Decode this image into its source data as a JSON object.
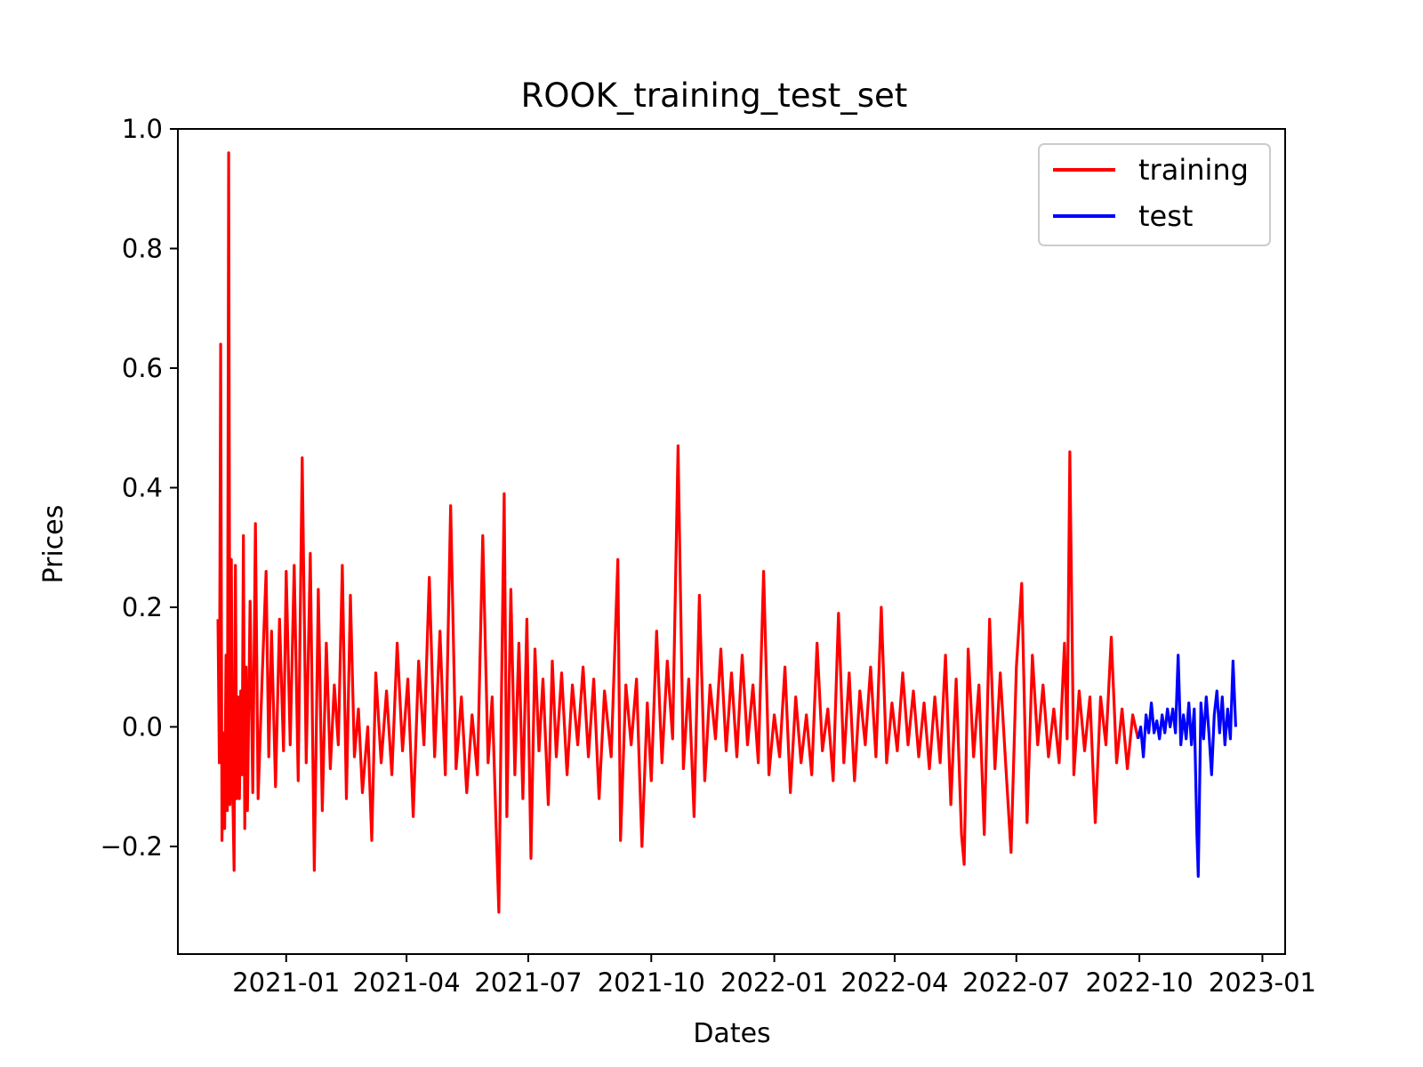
{
  "chart_data": {
    "type": "line",
    "title": "ROOK_training_test_set",
    "xlabel": "Dates",
    "ylabel": "Prices",
    "x_range": [
      "2020-10-12",
      "2023-01-18"
    ],
    "ylim": [
      -0.38,
      1.0
    ],
    "x_ticks": [
      "2021-01",
      "2021-04",
      "2021-07",
      "2021-10",
      "2022-01",
      "2022-04",
      "2022-07",
      "2022-10",
      "2023-01"
    ],
    "y_ticks": [
      "−0.2",
      "0.0",
      "0.2",
      "0.4",
      "0.6",
      "0.8",
      "1.0"
    ],
    "y_tick_values": [
      -0.2,
      0.0,
      0.2,
      0.4,
      0.6,
      0.8,
      1.0
    ],
    "grid": false,
    "legend": {
      "position": "top-right",
      "entries": [
        "training",
        "test"
      ]
    },
    "series": [
      {
        "name": "training",
        "color": "#ff0000",
        "points": [
          [
            "2020-11-11",
            0.18
          ],
          [
            "2020-11-12",
            -0.06
          ],
          [
            "2020-11-13",
            0.64
          ],
          [
            "2020-11-14",
            -0.19
          ],
          [
            "2020-11-15",
            -0.01
          ],
          [
            "2020-11-16",
            -0.17
          ],
          [
            "2020-11-17",
            0.12
          ],
          [
            "2020-11-18",
            -0.14
          ],
          [
            "2020-11-19",
            0.96
          ],
          [
            "2020-11-20",
            -0.13
          ],
          [
            "2020-11-21",
            0.28
          ],
          [
            "2020-11-22",
            -0.1
          ],
          [
            "2020-11-23",
            -0.24
          ],
          [
            "2020-11-24",
            0.27
          ],
          [
            "2020-11-25",
            -0.12
          ],
          [
            "2020-11-26",
            0.05
          ],
          [
            "2020-11-27",
            -0.12
          ],
          [
            "2020-11-28",
            0.06
          ],
          [
            "2020-11-29",
            -0.08
          ],
          [
            "2020-11-30",
            0.32
          ],
          [
            "2020-12-01",
            -0.17
          ],
          [
            "2020-12-02",
            0.1
          ],
          [
            "2020-12-03",
            -0.14
          ],
          [
            "2020-12-05",
            0.21
          ],
          [
            "2020-12-07",
            -0.11
          ],
          [
            "2020-12-09",
            0.34
          ],
          [
            "2020-12-11",
            -0.12
          ],
          [
            "2020-12-14",
            0.08
          ],
          [
            "2020-12-17",
            0.26
          ],
          [
            "2020-12-19",
            -0.05
          ],
          [
            "2020-12-21",
            0.16
          ],
          [
            "2020-12-24",
            -0.1
          ],
          [
            "2020-12-27",
            0.18
          ],
          [
            "2020-12-30",
            -0.04
          ],
          [
            "2021-01-01",
            0.26
          ],
          [
            "2021-01-04",
            -0.03
          ],
          [
            "2021-01-07",
            0.27
          ],
          [
            "2021-01-10",
            -0.09
          ],
          [
            "2021-01-13",
            0.45
          ],
          [
            "2021-01-16",
            -0.06
          ],
          [
            "2021-01-19",
            0.29
          ],
          [
            "2021-01-22",
            -0.24
          ],
          [
            "2021-01-25",
            0.23
          ],
          [
            "2021-01-28",
            -0.14
          ],
          [
            "2021-01-31",
            0.14
          ],
          [
            "2021-02-03",
            -0.07
          ],
          [
            "2021-02-06",
            0.07
          ],
          [
            "2021-02-09",
            -0.03
          ],
          [
            "2021-02-12",
            0.27
          ],
          [
            "2021-02-15",
            -0.12
          ],
          [
            "2021-02-18",
            0.22
          ],
          [
            "2021-02-21",
            -0.05
          ],
          [
            "2021-02-24",
            0.03
          ],
          [
            "2021-02-27",
            -0.11
          ],
          [
            "2021-03-03",
            0.0
          ],
          [
            "2021-03-06",
            -0.19
          ],
          [
            "2021-03-09",
            0.09
          ],
          [
            "2021-03-13",
            -0.06
          ],
          [
            "2021-03-17",
            0.06
          ],
          [
            "2021-03-21",
            -0.08
          ],
          [
            "2021-03-25",
            0.14
          ],
          [
            "2021-03-29",
            -0.04
          ],
          [
            "2021-04-02",
            0.08
          ],
          [
            "2021-04-06",
            -0.15
          ],
          [
            "2021-04-10",
            0.11
          ],
          [
            "2021-04-14",
            -0.03
          ],
          [
            "2021-04-18",
            0.25
          ],
          [
            "2021-04-22",
            -0.05
          ],
          [
            "2021-04-26",
            0.16
          ],
          [
            "2021-04-30",
            -0.08
          ],
          [
            "2021-05-04",
            0.37
          ],
          [
            "2021-05-08",
            -0.07
          ],
          [
            "2021-05-12",
            0.05
          ],
          [
            "2021-05-16",
            -0.11
          ],
          [
            "2021-05-20",
            0.02
          ],
          [
            "2021-05-24",
            -0.08
          ],
          [
            "2021-05-28",
            0.32
          ],
          [
            "2021-06-01",
            -0.06
          ],
          [
            "2021-06-04",
            0.05
          ],
          [
            "2021-06-07",
            -0.17
          ],
          [
            "2021-06-09",
            -0.31
          ],
          [
            "2021-06-11",
            0.06
          ],
          [
            "2021-06-13",
            0.39
          ],
          [
            "2021-06-15",
            -0.15
          ],
          [
            "2021-06-18",
            0.23
          ],
          [
            "2021-06-21",
            -0.08
          ],
          [
            "2021-06-24",
            0.14
          ],
          [
            "2021-06-27",
            -0.12
          ],
          [
            "2021-06-30",
            0.18
          ],
          [
            "2021-07-03",
            -0.22
          ],
          [
            "2021-07-06",
            0.13
          ],
          [
            "2021-07-09",
            -0.04
          ],
          [
            "2021-07-12",
            0.08
          ],
          [
            "2021-07-16",
            -0.13
          ],
          [
            "2021-07-19",
            0.11
          ],
          [
            "2021-07-22",
            -0.05
          ],
          [
            "2021-07-26",
            0.09
          ],
          [
            "2021-07-30",
            -0.08
          ],
          [
            "2021-08-03",
            0.07
          ],
          [
            "2021-08-07",
            -0.03
          ],
          [
            "2021-08-11",
            0.1
          ],
          [
            "2021-08-15",
            -0.05
          ],
          [
            "2021-08-19",
            0.08
          ],
          [
            "2021-08-23",
            -0.12
          ],
          [
            "2021-08-27",
            0.06
          ],
          [
            "2021-09-01",
            -0.05
          ],
          [
            "2021-09-06",
            0.28
          ],
          [
            "2021-09-08",
            -0.19
          ],
          [
            "2021-09-12",
            0.07
          ],
          [
            "2021-09-16",
            -0.03
          ],
          [
            "2021-09-20",
            0.08
          ],
          [
            "2021-09-24",
            -0.2
          ],
          [
            "2021-09-28",
            0.04
          ],
          [
            "2021-10-01",
            -0.09
          ],
          [
            "2021-10-05",
            0.16
          ],
          [
            "2021-10-09",
            -0.06
          ],
          [
            "2021-10-13",
            0.11
          ],
          [
            "2021-10-17",
            -0.02
          ],
          [
            "2021-10-21",
            0.47
          ],
          [
            "2021-10-25",
            -0.07
          ],
          [
            "2021-10-29",
            0.08
          ],
          [
            "2021-11-02",
            -0.15
          ],
          [
            "2021-11-06",
            0.22
          ],
          [
            "2021-11-10",
            -0.09
          ],
          [
            "2021-11-14",
            0.07
          ],
          [
            "2021-11-18",
            -0.02
          ],
          [
            "2021-11-22",
            0.13
          ],
          [
            "2021-11-26",
            -0.04
          ],
          [
            "2021-11-30",
            0.09
          ],
          [
            "2021-12-04",
            -0.05
          ],
          [
            "2021-12-08",
            0.12
          ],
          [
            "2021-12-12",
            -0.03
          ],
          [
            "2021-12-16",
            0.07
          ],
          [
            "2021-12-20",
            -0.06
          ],
          [
            "2021-12-24",
            0.26
          ],
          [
            "2021-12-28",
            -0.08
          ],
          [
            "2022-01-01",
            0.02
          ],
          [
            "2022-01-05",
            -0.05
          ],
          [
            "2022-01-09",
            0.1
          ],
          [
            "2022-01-13",
            -0.11
          ],
          [
            "2022-01-17",
            0.05
          ],
          [
            "2022-01-21",
            -0.06
          ],
          [
            "2022-01-25",
            0.02
          ],
          [
            "2022-01-29",
            -0.08
          ],
          [
            "2022-02-02",
            0.14
          ],
          [
            "2022-02-06",
            -0.04
          ],
          [
            "2022-02-10",
            0.03
          ],
          [
            "2022-02-14",
            -0.09
          ],
          [
            "2022-02-18",
            0.19
          ],
          [
            "2022-02-22",
            -0.06
          ],
          [
            "2022-02-26",
            0.09
          ],
          [
            "2022-03-02",
            -0.09
          ],
          [
            "2022-03-06",
            0.06
          ],
          [
            "2022-03-10",
            -0.03
          ],
          [
            "2022-03-14",
            0.1
          ],
          [
            "2022-03-18",
            -0.05
          ],
          [
            "2022-03-22",
            0.2
          ],
          [
            "2022-03-26",
            -0.06
          ],
          [
            "2022-03-30",
            0.04
          ],
          [
            "2022-04-03",
            -0.04
          ],
          [
            "2022-04-07",
            0.09
          ],
          [
            "2022-04-11",
            -0.03
          ],
          [
            "2022-04-15",
            0.06
          ],
          [
            "2022-04-19",
            -0.05
          ],
          [
            "2022-04-23",
            0.04
          ],
          [
            "2022-04-27",
            -0.07
          ],
          [
            "2022-05-01",
            0.05
          ],
          [
            "2022-05-05",
            -0.06
          ],
          [
            "2022-05-09",
            0.12
          ],
          [
            "2022-05-13",
            -0.13
          ],
          [
            "2022-05-17",
            0.08
          ],
          [
            "2022-05-21",
            -0.18
          ],
          [
            "2022-05-23",
            -0.23
          ],
          [
            "2022-05-26",
            0.13
          ],
          [
            "2022-05-30",
            -0.05
          ],
          [
            "2022-06-03",
            0.07
          ],
          [
            "2022-06-07",
            -0.18
          ],
          [
            "2022-06-11",
            0.18
          ],
          [
            "2022-06-15",
            -0.07
          ],
          [
            "2022-06-19",
            0.09
          ],
          [
            "2022-06-23",
            -0.06
          ],
          [
            "2022-06-27",
            -0.21
          ],
          [
            "2022-07-01",
            0.1
          ],
          [
            "2022-07-05",
            0.24
          ],
          [
            "2022-07-09",
            -0.16
          ],
          [
            "2022-07-13",
            0.12
          ],
          [
            "2022-07-17",
            -0.03
          ],
          [
            "2022-07-21",
            0.07
          ],
          [
            "2022-07-25",
            -0.05
          ],
          [
            "2022-07-29",
            0.03
          ],
          [
            "2022-08-02",
            -0.06
          ],
          [
            "2022-08-06",
            0.14
          ],
          [
            "2022-08-08",
            -0.02
          ],
          [
            "2022-08-10",
            0.46
          ],
          [
            "2022-08-13",
            -0.08
          ],
          [
            "2022-08-17",
            0.06
          ],
          [
            "2022-08-21",
            -0.04
          ],
          [
            "2022-08-25",
            0.05
          ],
          [
            "2022-08-29",
            -0.16
          ],
          [
            "2022-09-02",
            0.05
          ],
          [
            "2022-09-06",
            -0.03
          ],
          [
            "2022-09-10",
            0.15
          ],
          [
            "2022-09-14",
            -0.06
          ],
          [
            "2022-09-18",
            0.03
          ],
          [
            "2022-09-22",
            -0.07
          ],
          [
            "2022-09-26",
            0.02
          ],
          [
            "2022-09-30",
            -0.02
          ]
        ]
      },
      {
        "name": "test",
        "color": "#0000ff",
        "points": [
          [
            "2022-09-30",
            -0.02
          ],
          [
            "2022-10-02",
            0.0
          ],
          [
            "2022-10-04",
            -0.05
          ],
          [
            "2022-10-06",
            0.02
          ],
          [
            "2022-10-08",
            -0.01
          ],
          [
            "2022-10-10",
            0.04
          ],
          [
            "2022-10-12",
            -0.01
          ],
          [
            "2022-10-14",
            0.01
          ],
          [
            "2022-10-16",
            -0.02
          ],
          [
            "2022-10-18",
            0.02
          ],
          [
            "2022-10-20",
            -0.01
          ],
          [
            "2022-10-22",
            0.03
          ],
          [
            "2022-10-24",
            0.0
          ],
          [
            "2022-10-26",
            0.03
          ],
          [
            "2022-10-28",
            -0.01
          ],
          [
            "2022-10-30",
            0.12
          ],
          [
            "2022-11-01",
            -0.03
          ],
          [
            "2022-11-03",
            0.02
          ],
          [
            "2022-11-05",
            -0.02
          ],
          [
            "2022-11-07",
            0.04
          ],
          [
            "2022-11-09",
            -0.03
          ],
          [
            "2022-11-11",
            0.03
          ],
          [
            "2022-11-13",
            -0.18
          ],
          [
            "2022-11-14",
            -0.25
          ],
          [
            "2022-11-16",
            0.04
          ],
          [
            "2022-11-18",
            -0.02
          ],
          [
            "2022-11-20",
            0.05
          ],
          [
            "2022-11-22",
            -0.01
          ],
          [
            "2022-11-24",
            -0.08
          ],
          [
            "2022-11-26",
            0.02
          ],
          [
            "2022-11-28",
            0.06
          ],
          [
            "2022-11-30",
            -0.01
          ],
          [
            "2022-12-02",
            0.05
          ],
          [
            "2022-12-04",
            -0.03
          ],
          [
            "2022-12-06",
            0.03
          ],
          [
            "2022-12-08",
            -0.02
          ],
          [
            "2022-12-10",
            0.11
          ],
          [
            "2022-12-12",
            0.0
          ]
        ]
      }
    ]
  }
}
